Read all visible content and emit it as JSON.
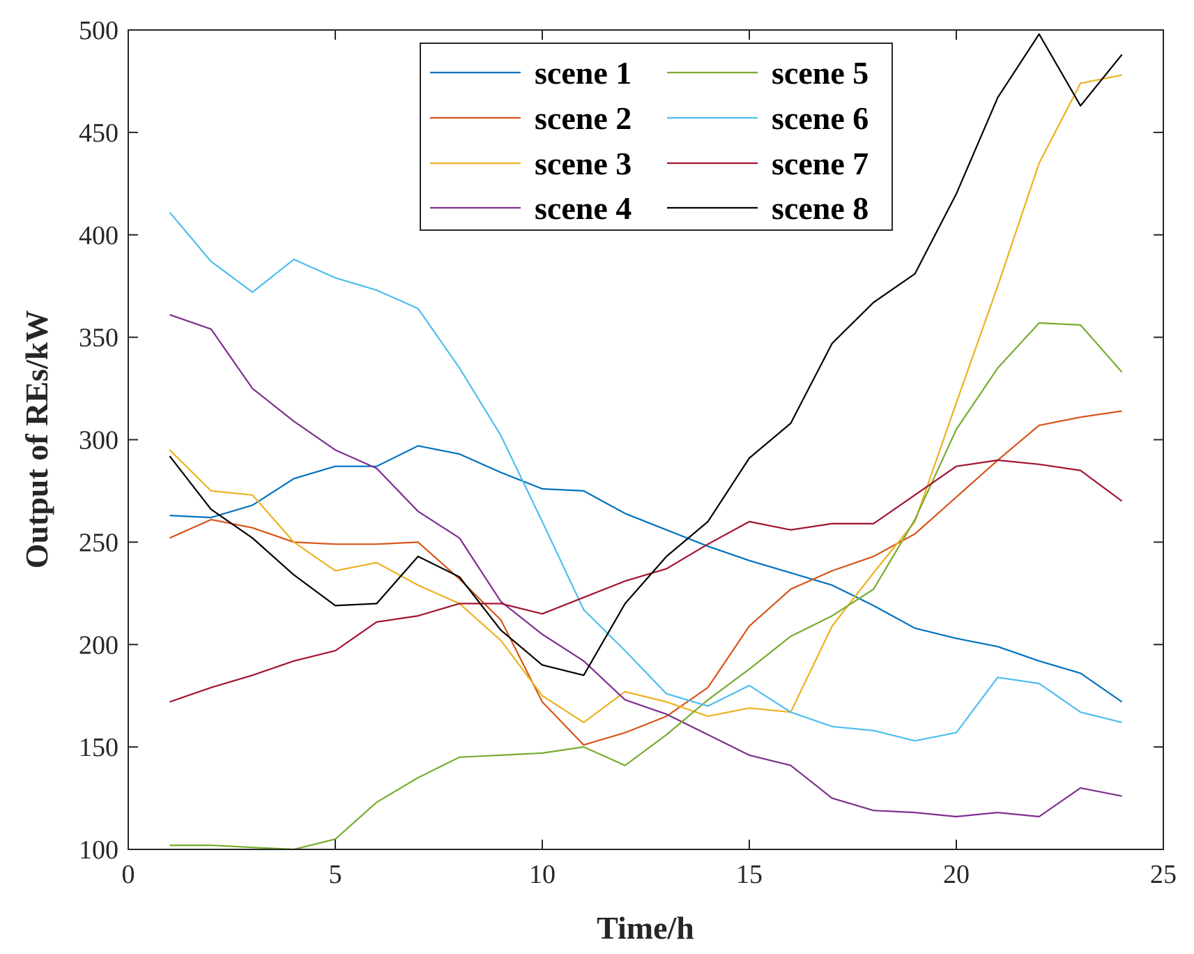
{
  "chart_data": {
    "type": "line",
    "xlabel": "Time/h",
    "ylabel": "Output of REs/kW",
    "xlim": [
      0,
      25
    ],
    "ylim": [
      100,
      500
    ],
    "xticks": [
      0,
      5,
      10,
      15,
      20,
      25
    ],
    "yticks": [
      100,
      150,
      200,
      250,
      300,
      350,
      400,
      450,
      500
    ],
    "grid": false,
    "legend_position": "top-center",
    "legend_columns": 2,
    "x": [
      1,
      2,
      3,
      4,
      5,
      6,
      7,
      8,
      9,
      10,
      11,
      12,
      13,
      14,
      15,
      16,
      17,
      18,
      19,
      20,
      21,
      22,
      23,
      24
    ],
    "series": [
      {
        "name": "scene 1",
        "color": "#0072BD",
        "values": [
          263,
          262,
          268,
          281,
          287,
          287,
          297,
          293,
          284,
          276,
          275,
          264,
          256,
          248,
          241,
          235,
          229,
          219,
          208,
          203,
          199,
          192,
          186,
          172
        ]
      },
      {
        "name": "scene 2",
        "color": "#D95319",
        "values": [
          252,
          261,
          257,
          250,
          249,
          249,
          250,
          232,
          212,
          172,
          151,
          157,
          165,
          179,
          209,
          227,
          236,
          243,
          254,
          272,
          290,
          307,
          311,
          314
        ]
      },
      {
        "name": "scene 3",
        "color": "#EDB120",
        "values": [
          295,
          275,
          273,
          250,
          236,
          240,
          229,
          220,
          202,
          175,
          162,
          177,
          172,
          165,
          169,
          167,
          209,
          235,
          260,
          318,
          375,
          435,
          474,
          478
        ]
      },
      {
        "name": "scene 4",
        "color": "#7E2F8E",
        "values": [
          361,
          354,
          325,
          309,
          295,
          286,
          265,
          252,
          221,
          205,
          192,
          173,
          166,
          156,
          146,
          141,
          125,
          119,
          118,
          116,
          118,
          116,
          130,
          126
        ]
      },
      {
        "name": "scene 5",
        "color": "#77AC30",
        "values": [
          102,
          102,
          101,
          100,
          105,
          123,
          135,
          145,
          146,
          147,
          150,
          141,
          156,
          173,
          188,
          204,
          214,
          227,
          261,
          305,
          335,
          357,
          356,
          333
        ]
      },
      {
        "name": "scene 6",
        "color": "#4DBEEE",
        "values": [
          411,
          387,
          372,
          388,
          379,
          373,
          364,
          335,
          302,
          260,
          217,
          197,
          176,
          170,
          180,
          167,
          160,
          158,
          153,
          157,
          184,
          181,
          167,
          162
        ]
      },
      {
        "name": "scene 7",
        "color": "#A2142F",
        "values": [
          172,
          179,
          185,
          192,
          197,
          211,
          214,
          220,
          220,
          215,
          223,
          231,
          237,
          249,
          260,
          256,
          259,
          259,
          273,
          287,
          290,
          288,
          285,
          270
        ]
      },
      {
        "name": "scene 8",
        "color": "#000000",
        "values": [
          292,
          266,
          252,
          234,
          219,
          220,
          243,
          233,
          207,
          190,
          185,
          220,
          243,
          260,
          291,
          308,
          347,
          367,
          381,
          420,
          467,
          498,
          463,
          488
        ]
      }
    ]
  }
}
